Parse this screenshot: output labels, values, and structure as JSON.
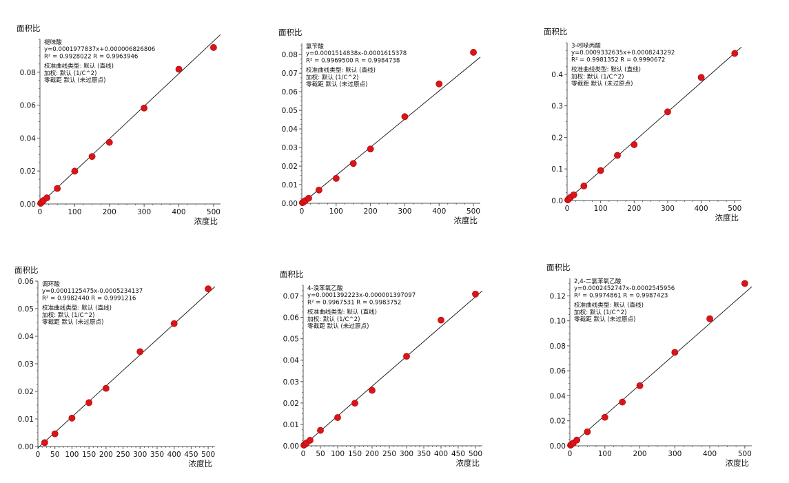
{
  "chart_data": [
    {
      "type": "scatter",
      "title": "",
      "ylabel": "面积比",
      "xlabel": "浓度比",
      "xlim": [
        0,
        520
      ],
      "ylim": [
        0,
        0.1
      ],
      "xticks": [
        0,
        100,
        200,
        300,
        400,
        500
      ],
      "yticks": [
        0,
        0.02,
        0.04,
        0.06,
        0.08
      ],
      "ytick_labels": [
        "0.00",
        "0.02",
        "0.04",
        "0.06",
        "0.08"
      ],
      "annotation": [
        "褪味酸",
        "y=0.0001977837x+0.000006826806",
        "R² = 0.9928022   R = 0.9963946",
        "校准曲线类型: 默认 (直线)",
        "加权: 默认 (1/C^2)",
        "零截距 默认 (未过原点)"
      ],
      "points": {
        "x": [
          2,
          5,
          10,
          20,
          50,
          100,
          150,
          200,
          300,
          400,
          500
        ],
        "y": [
          0.0004,
          0.0011,
          0.0021,
          0.0037,
          0.0094,
          0.0199,
          0.0288,
          0.0374,
          0.0582,
          0.0818,
          0.095
        ]
      },
      "fit": {
        "slope": 0.0001977837,
        "intercept": 6.826806e-06
      },
      "grid": false
    },
    {
      "type": "scatter",
      "title": "",
      "ylabel": "面积比",
      "xlabel": "浓度比",
      "xlim": [
        0,
        520
      ],
      "ylim": [
        0,
        0.086
      ],
      "xticks": [
        0,
        100,
        200,
        300,
        400,
        500
      ],
      "yticks": [
        0,
        0.01,
        0.02,
        0.03,
        0.04,
        0.05,
        0.06,
        0.07,
        0.08
      ],
      "ytick_labels": [
        "0.00",
        "0.01",
        "0.02",
        "0.03",
        "0.04",
        "0.05",
        "0.06",
        "0.07",
        "0.08"
      ],
      "annotation": [
        "氯苄酸",
        "y=0.0001514838x-0.0001615378",
        "R² = 0.9969500   R = 0.9984738",
        "校准曲线类型: 默认 (直线)",
        "加权: 默认 (1/C^2)",
        "零截距 默认 (未过原点)"
      ],
      "points": {
        "x": [
          2,
          5,
          10,
          20,
          50,
          100,
          150,
          200,
          300,
          400,
          500
        ],
        "y": [
          0.0003,
          0.0007,
          0.0014,
          0.0027,
          0.0071,
          0.0134,
          0.0214,
          0.0292,
          0.0466,
          0.0642,
          0.0812
        ]
      },
      "fit": {
        "slope": 0.0001514838,
        "intercept": -0.0001615378
      },
      "grid": false
    },
    {
      "type": "scatter",
      "title": "",
      "ylabel": "面积比",
      "xlabel": "浓度比",
      "xlim": [
        0,
        520
      ],
      "ylim": [
        0,
        0.5
      ],
      "xticks": [
        0,
        100,
        200,
        300,
        400,
        500
      ],
      "yticks": [
        0,
        0.1,
        0.2,
        0.3,
        0.4
      ],
      "ytick_labels": [
        "0.0",
        "0.1",
        "0.2",
        "0.3",
        "0.4"
      ],
      "annotation": [
        "3-吲哚丙酸",
        "y=0.0009332635x+0.0008243292",
        "R² = 0.9981352   R = 0.9990672",
        "校准曲线类型: 默认 (直线)",
        "加权: 默认 (1/C^2)",
        "零截距 默认 (未过原点)"
      ],
      "points": {
        "x": [
          2,
          5,
          10,
          20,
          50,
          100,
          150,
          200,
          300,
          400,
          500
        ],
        "y": [
          0.002,
          0.005,
          0.01,
          0.018,
          0.046,
          0.095,
          0.143,
          0.177,
          0.281,
          0.39,
          0.466
        ]
      },
      "fit": {
        "slope": 0.0009332635,
        "intercept": 0.0008243292
      },
      "grid": false
    },
    {
      "type": "scatter",
      "title": "",
      "ylabel": "面积比",
      "xlabel": "浓度比",
      "xlim": [
        0,
        520
      ],
      "ylim": [
        0,
        0.06
      ],
      "xticks": [
        0,
        50,
        100,
        150,
        200,
        250,
        300,
        350,
        400,
        450,
        500
      ],
      "yticks": [
        0,
        0.01,
        0.02,
        0.03,
        0.04,
        0.05,
        0.06
      ],
      "ytick_labels": [
        "0.00",
        "0.01",
        "0.02",
        "0.03",
        "0.04",
        "0.05",
        "0.06"
      ],
      "annotation": [
        "调环酸",
        "y=0.0001125475x-0.0005234137",
        "R² = 0.9982440   R = 0.9991216",
        "校准曲线类型: 默认 (直线)",
        "加权: 默认 (1/C^2)",
        "零截距 默认 (未过原点)"
      ],
      "points": {
        "x": [
          20,
          50,
          100,
          150,
          200,
          300,
          400,
          500
        ],
        "y": [
          0.0014,
          0.0046,
          0.0103,
          0.0159,
          0.0211,
          0.0344,
          0.0446,
          0.0572
        ]
      },
      "fit": {
        "slope": 0.0001125475,
        "intercept": -0.0005234137
      },
      "grid": false
    },
    {
      "type": "scatter",
      "title": "",
      "ylabel": "面积比",
      "xlabel": "浓度比",
      "xlim": [
        0,
        520
      ],
      "ylim": [
        0,
        0.075
      ],
      "xticks": [
        0,
        50,
        100,
        150,
        200,
        250,
        300,
        350,
        400,
        450,
        500
      ],
      "yticks": [
        0,
        0.01,
        0.02,
        0.03,
        0.04,
        0.05,
        0.06,
        0.07
      ],
      "ytick_labels": [
        "0.00",
        "0.01",
        "0.02",
        "0.03",
        "0.04",
        "0.05",
        "0.06",
        "0.07"
      ],
      "annotation": [
        "4-溴苯氧乙酸",
        "y=0.0001392223x-0.000001397097",
        "R² = 0.9967531   R = 0.9983752",
        "校准曲线类型: 默认 (直线)",
        "加权: 默认 (1/C^2)",
        "零截距 默认 (未过原点)"
      ],
      "points": {
        "x": [
          2,
          5,
          10,
          20,
          50,
          100,
          150,
          200,
          300,
          400,
          500
        ],
        "y": [
          0.0003,
          0.0007,
          0.0014,
          0.0026,
          0.0072,
          0.0132,
          0.0199,
          0.0259,
          0.0418,
          0.0587,
          0.0709
        ]
      },
      "fit": {
        "slope": 0.0001392223,
        "intercept": -1.397097e-06
      },
      "grid": false
    },
    {
      "type": "scatter",
      "title": "",
      "ylabel": "面积比",
      "xlabel": "浓度比",
      "xlim": [
        0,
        520
      ],
      "ylim": [
        0,
        0.134
      ],
      "xticks": [
        0,
        100,
        200,
        300,
        400,
        500
      ],
      "yticks": [
        0,
        0.02,
        0.04,
        0.06,
        0.08,
        0.1,
        0.12
      ],
      "ytick_labels": [
        "0.00",
        "0.02",
        "0.04",
        "0.06",
        "0.08",
        "0.10",
        "0.12"
      ],
      "annotation": [
        "2,4-二氯苯氧乙酸",
        "y=0.0002452747x-0.0002545956",
        "R² = 0.9974861   R = 0.9987423",
        "校准曲线类型: 默认 (直线)",
        "加权: 默认 (1/C^2)",
        "零截距 默认 (未过原点)"
      ],
      "points": {
        "x": [
          2,
          5,
          10,
          20,
          50,
          100,
          150,
          200,
          300,
          400,
          500
        ],
        "y": [
          0.0005,
          0.0012,
          0.0022,
          0.0046,
          0.0112,
          0.0228,
          0.035,
          0.0481,
          0.0748,
          0.1017,
          0.1299
        ]
      },
      "fit": {
        "slope": 0.0002452747,
        "intercept": -0.0002545956
      },
      "grid": false
    }
  ]
}
